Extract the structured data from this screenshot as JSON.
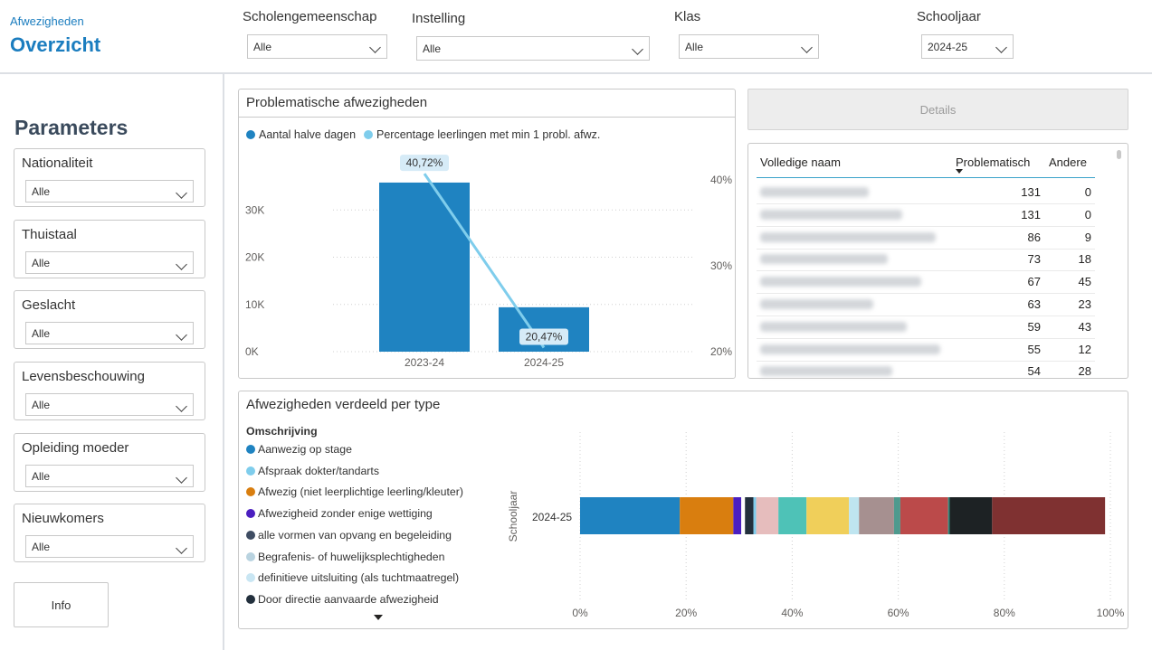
{
  "header": {
    "breadcrumb": "Afwezigheden",
    "title": "Overzicht",
    "filters": [
      {
        "label": "Scholengemeenschap",
        "value": "Alle"
      },
      {
        "label": "Instelling",
        "value": "Alle"
      },
      {
        "label": "Klas",
        "value": "Alle"
      },
      {
        "label": "Schooljaar",
        "value": "2024-25"
      }
    ]
  },
  "parameters": {
    "title": "Parameters",
    "items": [
      {
        "label": "Nationaliteit",
        "value": "Alle"
      },
      {
        "label": "Thuistaal",
        "value": "Alle"
      },
      {
        "label": "Geslacht",
        "value": "Alle"
      },
      {
        "label": "Levensbeschouwing",
        "value": "Alle"
      },
      {
        "label": "Opleiding moeder",
        "value": "Alle"
      },
      {
        "label": "Nieuwkomers",
        "value": "Alle"
      }
    ],
    "info_label": "Info"
  },
  "problem_chart": {
    "title": "Problematische afwezigheden",
    "legend": [
      {
        "name": "Aantal halve dagen",
        "color": "#1f83c1"
      },
      {
        "name": "Percentage leerlingen met min 1 probl. afwz.",
        "color": "#7fcdec"
      }
    ]
  },
  "chart_data": [
    {
      "type": "bar",
      "title": "Problematische afwezigheden",
      "categories": [
        "2023-24",
        "2024-25"
      ],
      "series": [
        {
          "name": "Aantal halve dagen",
          "values": [
            35800,
            9400
          ],
          "axis": "left",
          "color": "#1f83c1"
        },
        {
          "name": "Percentage leerlingen met min 1 probl. afwz.",
          "type": "line",
          "values": [
            40.72,
            20.47
          ],
          "axis": "right",
          "color": "#7fcdec",
          "labels": [
            "40,72%",
            "20,47%"
          ]
        }
      ],
      "ylim_left": [
        0,
        40000
      ],
      "yticks_left": [
        "0K",
        "10K",
        "20K",
        "30K"
      ],
      "ylim_right": [
        20,
        42
      ],
      "yticks_right": [
        "20%",
        "30%",
        "40%"
      ],
      "grid": true
    },
    {
      "type": "bar",
      "orientation": "horizontal",
      "stacked": true,
      "title": "Afwezigheden verdeeld per type",
      "ylabel": "Schooljaar",
      "categories": [
        "2024-25"
      ],
      "xticks": [
        "0%",
        "20%",
        "40%",
        "60%",
        "80%",
        "100%"
      ],
      "xlim": [
        0,
        100
      ],
      "segments": [
        {
          "name": "Aanwezig op stage",
          "color": "#1f83c1",
          "value": 18.8
        },
        {
          "name": "Afwezig (niet leerplichtige leerling/kleuter)",
          "color": "#d97e0f",
          "value": 10.1
        },
        {
          "name": "Afwezigheid zonder enige wettiging",
          "color": "#4b1fc0",
          "value": 1.5
        },
        {
          "name": "",
          "color": "#ffffff",
          "value": 0.7
        },
        {
          "name": "Door directie aanvaarde afwezigheid",
          "color": "#23303d",
          "value": 1.6
        },
        {
          "name": "Afspraak dokter/tandarts",
          "color": "#7fcdec",
          "value": 0.5
        },
        {
          "name": "",
          "color": "#e6bdbd",
          "value": 4.2
        },
        {
          "name": "",
          "color": "#4ec2b7",
          "value": 5.3
        },
        {
          "name": "",
          "color": "#f0cf5a",
          "value": 8.0
        },
        {
          "name": "definitieve uitsluiting (als tuchtmaatregel)",
          "color": "#bfe5f0",
          "value": 1.9
        },
        {
          "name": "",
          "color": "#a69090",
          "value": 6.6
        },
        {
          "name": "",
          "color": "#4e9a8e",
          "value": 1.2
        },
        {
          "name": "",
          "color": "#bb4a4a",
          "value": 9.0
        },
        {
          "name": "",
          "color": "#2a8a7c",
          "value": 0.3
        },
        {
          "name": "",
          "color": "#1d2224",
          "value": 8.0
        },
        {
          "name": "",
          "color": "#7f3131",
          "value": 21.3
        }
      ]
    }
  ],
  "details": {
    "label": "Details",
    "columns": [
      "Volledige naam",
      "Problematisch",
      "Andere"
    ],
    "rows": [
      {
        "problematisch": "131",
        "andere": "0"
      },
      {
        "problematisch": "131",
        "andere": "0"
      },
      {
        "problematisch": "86",
        "andere": "9"
      },
      {
        "problematisch": "73",
        "andere": "18"
      },
      {
        "problematisch": "67",
        "andere": "45"
      },
      {
        "problematisch": "63",
        "andere": "23"
      },
      {
        "problematisch": "59",
        "andere": "43"
      },
      {
        "problematisch": "55",
        "andere": "12"
      },
      {
        "problematisch": "54",
        "andere": "28"
      }
    ]
  },
  "type_chart": {
    "title": "Afwezigheden verdeeld per type",
    "legend_title": "Omschrijving",
    "legend": [
      {
        "name": "Aanwezig op stage",
        "color": "#1f83c1"
      },
      {
        "name": "Afspraak dokter/tandarts",
        "color": "#7fcdec"
      },
      {
        "name": "Afwezig (niet leerplichtige leerling/kleuter)",
        "color": "#d97e0f"
      },
      {
        "name": "Afwezigheid zonder enige wettiging",
        "color": "#4b1fc0"
      },
      {
        "name": "alle vormen van opvang en begeleiding",
        "color": "#3f4d63"
      },
      {
        "name": "Begrafenis- of huwelijksplechtigheden",
        "color": "#b9d3e0"
      },
      {
        "name": "definitieve uitsluiting (als tuchtmaatregel)",
        "color": "#c9e6f3"
      },
      {
        "name": "Door directie aanvaarde afwezigheid",
        "color": "#23303d"
      }
    ]
  }
}
